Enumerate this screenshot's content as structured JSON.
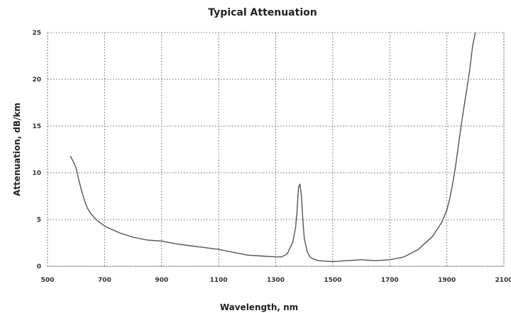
{
  "chart_data": {
    "type": "line",
    "title": "Typical Attenuation",
    "xlabel": "Wavelength, nm",
    "ylabel": "Attenuation, dB/km",
    "xlim": [
      500,
      2100
    ],
    "ylim": [
      0,
      25
    ],
    "xticks": [
      500,
      700,
      900,
      1100,
      1300,
      1500,
      1700,
      1900,
      2100
    ],
    "yticks": [
      0,
      5,
      10,
      15,
      20,
      25
    ],
    "grid": true,
    "series": [
      {
        "x": [
          580,
          590,
          600,
          610,
          620,
          630,
          640,
          650,
          670,
          700,
          750,
          800,
          850,
          900,
          950,
          1000,
          1050,
          1100,
          1150,
          1200,
          1250,
          1300,
          1320,
          1340,
          1360,
          1370,
          1375,
          1380,
          1385,
          1390,
          1395,
          1400,
          1410,
          1420,
          1430,
          1450,
          1500,
          1550,
          1600,
          1650,
          1700,
          1750,
          1800,
          1850,
          1880,
          1900,
          1910,
          1920,
          1930,
          1940,
          1950,
          1960,
          1970,
          1980,
          1990,
          2000
        ],
        "y": [
          11.8,
          11.2,
          10.5,
          9.2,
          8.0,
          7.0,
          6.2,
          5.7,
          5.0,
          4.3,
          3.6,
          3.1,
          2.8,
          2.7,
          2.4,
          2.2,
          2.0,
          1.8,
          1.5,
          1.2,
          1.1,
          1.0,
          1.0,
          1.3,
          2.6,
          4.2,
          6.0,
          8.5,
          8.8,
          7.5,
          5.0,
          3.0,
          1.6,
          1.0,
          0.8,
          0.6,
          0.5,
          0.6,
          0.7,
          0.6,
          0.7,
          1.0,
          1.8,
          3.2,
          4.6,
          6.0,
          7.2,
          8.8,
          10.6,
          12.8,
          15.0,
          17.0,
          19.0,
          21.0,
          23.5,
          25.0
        ]
      }
    ]
  }
}
